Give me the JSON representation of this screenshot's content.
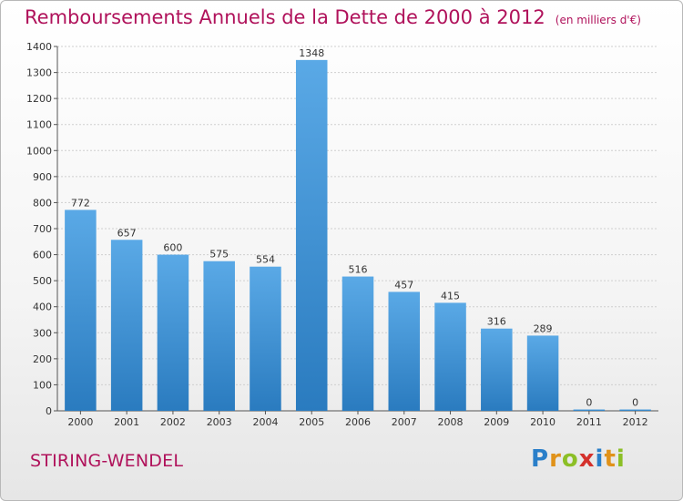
{
  "header": {
    "title": "Remboursements Annuels de la Dette de 2000 à 2012",
    "subtitle": "(en milliers d'€)"
  },
  "footer": {
    "city": "STIRING-WENDEL",
    "brand": "Proxiti",
    "brand_letters": [
      {
        "char": "P",
        "color": "#2a7fc9"
      },
      {
        "char": "r",
        "color": "#e0921a"
      },
      {
        "char": "o",
        "color": "#8cbf26"
      },
      {
        "char": "x",
        "color": "#d4312c"
      },
      {
        "char": "i",
        "color": "#2a7fc9"
      },
      {
        "char": "t",
        "color": "#e0921a"
      },
      {
        "char": "i",
        "color": "#8cbf26"
      }
    ]
  },
  "chart_data": {
    "type": "bar",
    "title": "Remboursements Annuels de la Dette de 2000 à 2012",
    "subtitle": "(en milliers d'€)",
    "categories": [
      "2000",
      "2001",
      "2002",
      "2003",
      "2004",
      "2005",
      "2006",
      "2007",
      "2008",
      "2009",
      "2010",
      "2011",
      "2012"
    ],
    "values": [
      772,
      657,
      600,
      575,
      554,
      1348,
      516,
      457,
      415,
      316,
      289,
      0,
      0
    ],
    "ylim": [
      0,
      1400
    ],
    "yticks": [
      0,
      100,
      200,
      300,
      400,
      500,
      600,
      700,
      800,
      900,
      1000,
      1100,
      1200,
      1300,
      1400
    ],
    "grid": true,
    "bar_color_top": "#5aa9e6",
    "bar_color_bottom": "#2a7bbf"
  }
}
